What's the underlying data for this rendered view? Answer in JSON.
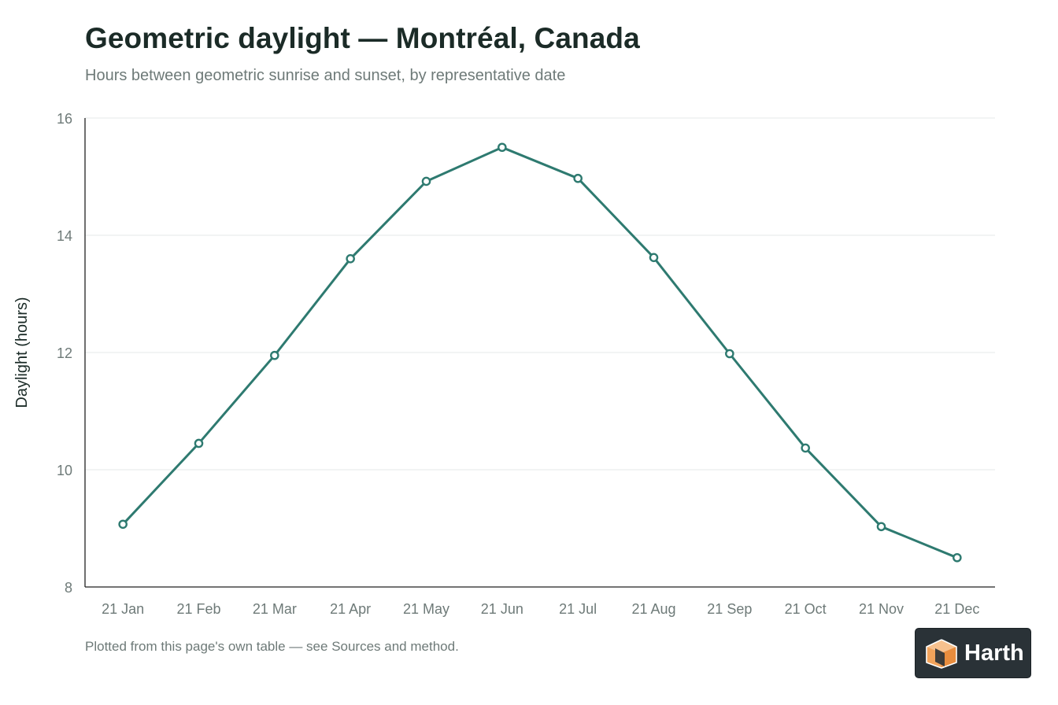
{
  "header": {
    "title": "Geometric daylight — Montréal, Canada",
    "subtitle": "Hours between geometric sunrise and sunset, by representative date"
  },
  "footer": {
    "note": "Plotted from this page's own table — see Sources and method."
  },
  "badge": {
    "label": "Harth",
    "icon": "box-logo-icon"
  },
  "colors": {
    "series": "#2e7a70",
    "grid": "#e6e9e8",
    "axis": "#222222",
    "tick_text": "#6e7a78",
    "logo_orange": "#f2a35b"
  },
  "chart_data": {
    "type": "line",
    "title": "Geometric daylight — Montréal, Canada",
    "subtitle": "Hours between geometric sunrise and sunset, by representative date",
    "xlabel": "",
    "ylabel": "Daylight (hours)",
    "categories": [
      "21 Jan",
      "21 Feb",
      "21 Mar",
      "21 Apr",
      "21 May",
      "21 Jun",
      "21 Jul",
      "21 Aug",
      "21 Sep",
      "21 Oct",
      "21 Nov",
      "21 Dec"
    ],
    "values": [
      9.07,
      10.45,
      11.95,
      13.6,
      14.92,
      15.5,
      14.97,
      13.62,
      11.98,
      10.37,
      9.03,
      8.5
    ],
    "ylim": [
      8,
      16
    ],
    "yticks": [
      8,
      10,
      12,
      14,
      16
    ],
    "grid": "horizontal",
    "markers": "hollow-circle"
  }
}
